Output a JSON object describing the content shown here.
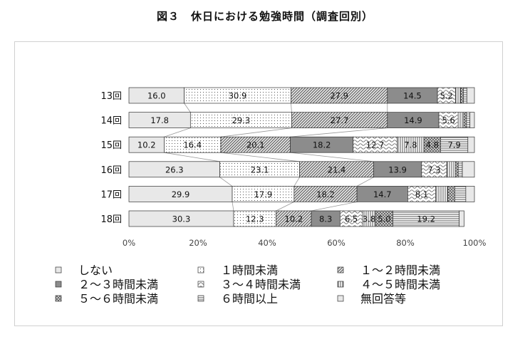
{
  "figure_title": "図３　休日における勉強時間（調査回別）",
  "chart_data": {
    "type": "bar",
    "orientation": "horizontal",
    "stacked": true,
    "percent": true,
    "categories": [
      "13回",
      "14回",
      "15回",
      "16回",
      "17回",
      "18回"
    ],
    "x_ticks": [
      "0%",
      "20%",
      "40%",
      "60%",
      "80%",
      "100%"
    ],
    "xlim": [
      0,
      100
    ],
    "grid": false,
    "legend_position": "bottom",
    "series": [
      {
        "name": "しない",
        "pattern": "light-gray",
        "values": [
          16.0,
          17.8,
          10.2,
          26.3,
          29.9,
          30.3
        ],
        "labels": [
          "16.0",
          "17.8",
          "10.2",
          "26.3",
          "29.9",
          "30.3"
        ]
      },
      {
        "name": "１時間未満",
        "pattern": "dots",
        "values": [
          30.9,
          29.3,
          16.4,
          23.1,
          17.9,
          12.3
        ],
        "labels": [
          "30.9",
          "29.3",
          "16.4",
          "23.1",
          "17.9",
          "12.3"
        ]
      },
      {
        "name": "１～２時間未満",
        "pattern": "diag-hatch",
        "values": [
          27.9,
          27.7,
          20.1,
          21.4,
          18.2,
          10.2
        ],
        "labels": [
          "27.9",
          "27.7",
          "20.1",
          "21.4",
          "18.2",
          "10.2"
        ]
      },
      {
        "name": "２～３時間未満",
        "pattern": "dark-gray",
        "values": [
          14.5,
          14.9,
          18.2,
          13.9,
          14.7,
          8.3
        ],
        "labels": [
          "14.5",
          "14.9",
          "18.2",
          "13.9",
          "14.7",
          "8.3"
        ]
      },
      {
        "name": "３～４時間未満",
        "pattern": "wave",
        "values": [
          5.2,
          5.6,
          12.7,
          7.3,
          8.1,
          6.5
        ],
        "labels": [
          "5.2",
          "5.6",
          "12.7",
          "7.3",
          "8.1",
          "6.5"
        ]
      },
      {
        "name": "４～５時間未満",
        "pattern": "vert-lines",
        "values": [
          1.5,
          1.6,
          7.8,
          2.5,
          3.5,
          3.8
        ],
        "labels": [
          "",
          "",
          "7.8",
          "",
          "",
          "3.8"
        ]
      },
      {
        "name": "５～６時間未満",
        "pattern": "cross-hatch",
        "values": [
          0.8,
          0.8,
          4.8,
          0.8,
          2.0,
          5.0
        ],
        "labels": [
          "",
          "",
          "4.8",
          "",
          "",
          "5.0"
        ]
      },
      {
        "name": "６時間以上",
        "pattern": "horiz-lines",
        "values": [
          1.0,
          1.0,
          7.9,
          1.2,
          3.2,
          19.2
        ],
        "labels": [
          "",
          "",
          "7.9",
          "",
          "",
          "19.2"
        ]
      },
      {
        "name": "無回答等",
        "pattern": "light-gray",
        "values": [
          2.2,
          1.3,
          1.9,
          3.5,
          2.5,
          1.4
        ],
        "labels": [
          "",
          "",
          "",
          "",
          "",
          ""
        ]
      }
    ]
  }
}
